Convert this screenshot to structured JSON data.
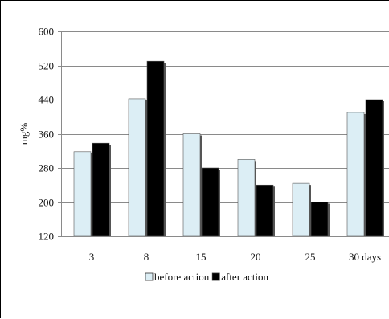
{
  "chart_data": {
    "type": "bar",
    "title": "",
    "xlabel": "",
    "ylabel": "mg%",
    "categories": [
      "3",
      "8",
      "15",
      "20",
      "25",
      "30 days"
    ],
    "series": [
      {
        "name": "before action",
        "values": [
          318,
          442,
          360,
          300,
          244,
          410
        ],
        "color": "#dceef5"
      },
      {
        "name": "after action",
        "values": [
          338,
          530,
          280,
          240,
          200,
          440
        ],
        "color": "#000000"
      }
    ],
    "ylim": [
      120,
      600
    ],
    "yticks": [
      120,
      200,
      280,
      360,
      440,
      520,
      600
    ],
    "grid": true,
    "legend_position": "bottom"
  }
}
